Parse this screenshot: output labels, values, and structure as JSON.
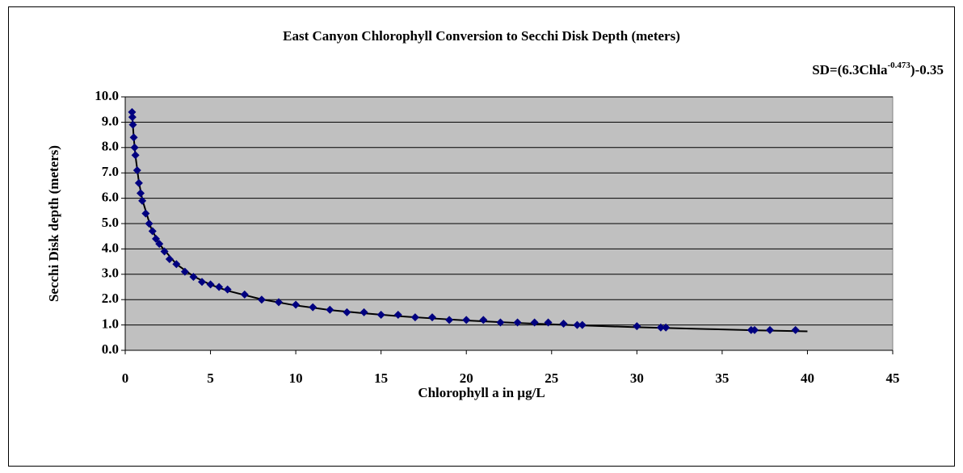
{
  "chart_data": {
    "type": "scatter",
    "title": "East Canyon  Chlorophyll Conversion to Secchi Disk Depth (meters)",
    "annotation": [
      "SD=(6.3Chla",
      "-0.473",
      ")-0.35"
    ],
    "x_label": "Chlorophyll a in µg/L",
    "y_label": "Secchi Disk depth (meters)",
    "xlim": [
      0,
      45
    ],
    "xticks": [
      0,
      5,
      10,
      15,
      20,
      25,
      30,
      35,
      40,
      45
    ],
    "ylim": [
      0,
      10
    ],
    "yticks": [
      {
        "value": 0,
        "label": "0.0"
      },
      {
        "value": 1,
        "label": "1.0"
      },
      {
        "value": 2,
        "label": "2.0"
      },
      {
        "value": 3,
        "label": "3.0"
      },
      {
        "value": 4,
        "label": "4.0"
      },
      {
        "value": 5,
        "label": "5.0"
      },
      {
        "value": 6,
        "label": "6.0"
      },
      {
        "value": 7,
        "label": "7.0"
      },
      {
        "value": 8,
        "label": "8.0"
      },
      {
        "value": 9,
        "label": "9.0"
      },
      {
        "value": 10,
        "label": "10.0"
      }
    ],
    "grid": true,
    "plot_background": "#c0c0c0",
    "series": [
      {
        "kind": "line",
        "color": "#000000",
        "x": [
          0.4,
          0.5,
          0.6,
          0.8,
          1,
          1.5,
          2,
          3,
          4,
          5,
          6,
          8,
          10,
          12,
          14,
          16,
          18,
          20,
          22,
          24,
          26,
          30,
          34,
          37,
          40
        ],
        "values": [
          9.37,
          8.39,
          7.67,
          6.65,
          5.95,
          4.85,
          4.19,
          3.4,
          2.92,
          2.59,
          2.35,
          2.01,
          1.77,
          1.59,
          1.46,
          1.35,
          1.26,
          1.18,
          1.11,
          1.05,
          1.0,
          0.91,
          0.84,
          0.79,
          0.75
        ]
      },
      {
        "kind": "points",
        "color": "#000080",
        "x": [
          0.4,
          0.42,
          0.45,
          0.5,
          0.55,
          0.6,
          0.7,
          0.8,
          0.9,
          1.0,
          1.2,
          1.4,
          1.6,
          1.8,
          2.0,
          2.3,
          2.6,
          3.0,
          3.5,
          4.0,
          4.5,
          5.0,
          5.5,
          6.0,
          7.0,
          8.0,
          9.0,
          10.0,
          11.0,
          12.0,
          13.0,
          14.0,
          15.0,
          16.0,
          17.0,
          18.0,
          19.0,
          20.0,
          21.0,
          22.0,
          23.0,
          24.0,
          24.8,
          25.7,
          26.5,
          26.8,
          30.0,
          31.4,
          31.7,
          36.7,
          36.9,
          37.8,
          39.3
        ],
        "values": [
          9.4,
          9.2,
          8.9,
          8.4,
          8.0,
          7.7,
          7.1,
          6.6,
          6.2,
          5.9,
          5.4,
          5.0,
          4.7,
          4.4,
          4.2,
          3.9,
          3.6,
          3.4,
          3.1,
          2.9,
          2.7,
          2.6,
          2.5,
          2.4,
          2.2,
          2.0,
          1.9,
          1.8,
          1.7,
          1.6,
          1.5,
          1.5,
          1.4,
          1.4,
          1.3,
          1.3,
          1.2,
          1.2,
          1.2,
          1.1,
          1.1,
          1.1,
          1.1,
          1.05,
          1.0,
          1.0,
          0.95,
          0.9,
          0.9,
          0.8,
          0.8,
          0.8,
          0.8
        ]
      }
    ]
  }
}
